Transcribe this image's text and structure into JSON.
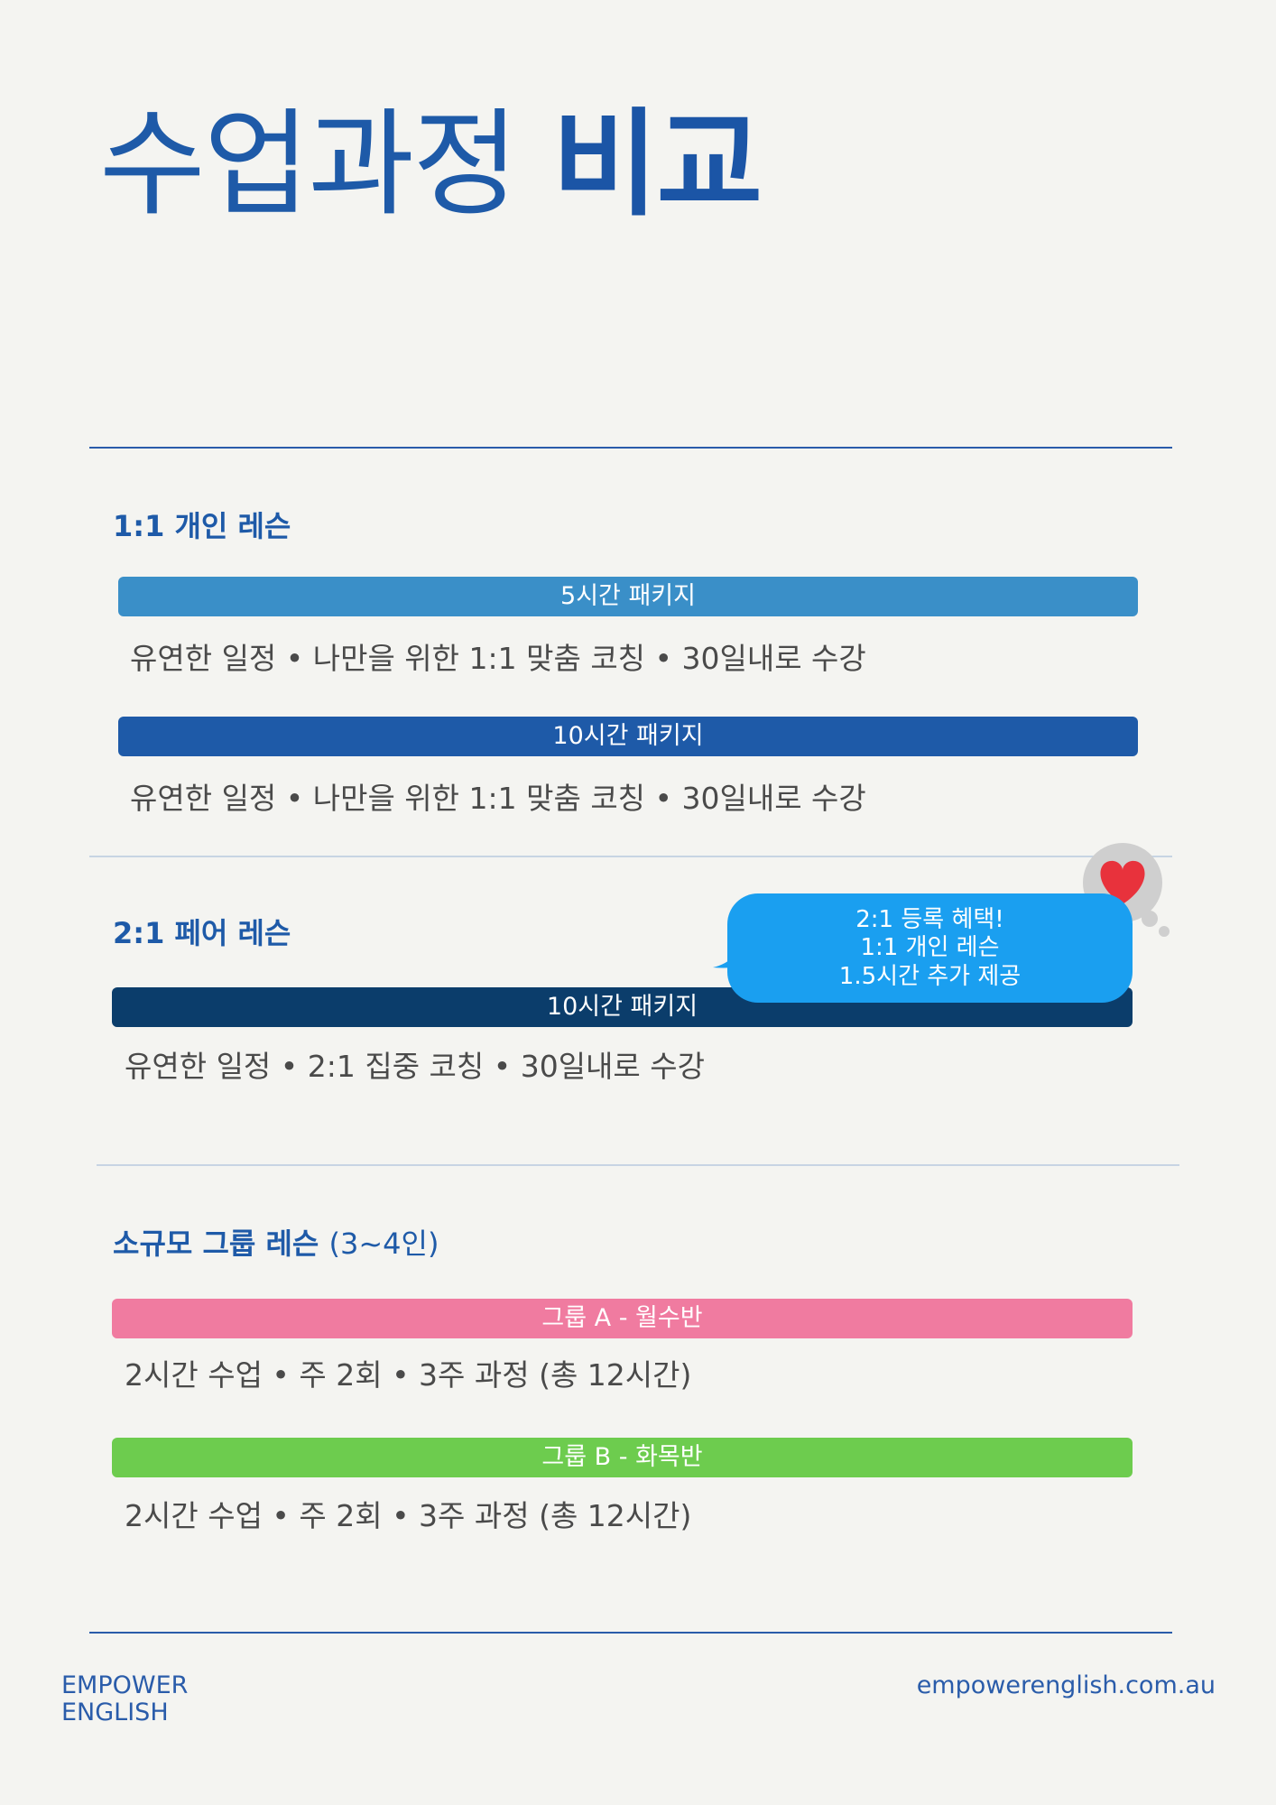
{
  "header": {
    "title_light": "수업과정",
    "title_bold": "비교"
  },
  "sections": [
    {
      "heading": "1:1 개인 레슨",
      "packages": [
        {
          "label": "5시간 패키지",
          "description": "유연한 일정 • 나만을 위한 1:1 맞춤 코칭 • 30일내로 수강"
        },
        {
          "label": "10시간 패키지",
          "description": "유연한 일정 • 나만을 위한 1:1 맞춤 코칭 • 30일내로 수강"
        }
      ]
    },
    {
      "heading": "2:1 페어 레슨",
      "packages": [
        {
          "label": "10시간 패키지",
          "description": "유연한 일정 • 2:1 집중 코칭 • 30일내로 수강"
        }
      ],
      "bubble": [
        "2:1 등록 혜택!",
        "1:1 개인 레슨",
        "1.5시간 추가 제공"
      ]
    },
    {
      "heading": "소규모 그룹 레슨",
      "heading_note": "(3~4인)",
      "packages": [
        {
          "label": "그룹 A - 월수반",
          "description": "2시간 수업 • 주 2회 • 3주 과정 (총 12시간)"
        },
        {
          "label": "그룹 B - 화목반",
          "description": "2시간 수업 • 주 2회 • 3주 과정 (총 12시간)"
        }
      ]
    }
  ],
  "footer": {
    "brand": [
      "EMPOWER",
      "ENGLISH"
    ],
    "website": "empowerenglish.com.au"
  }
}
